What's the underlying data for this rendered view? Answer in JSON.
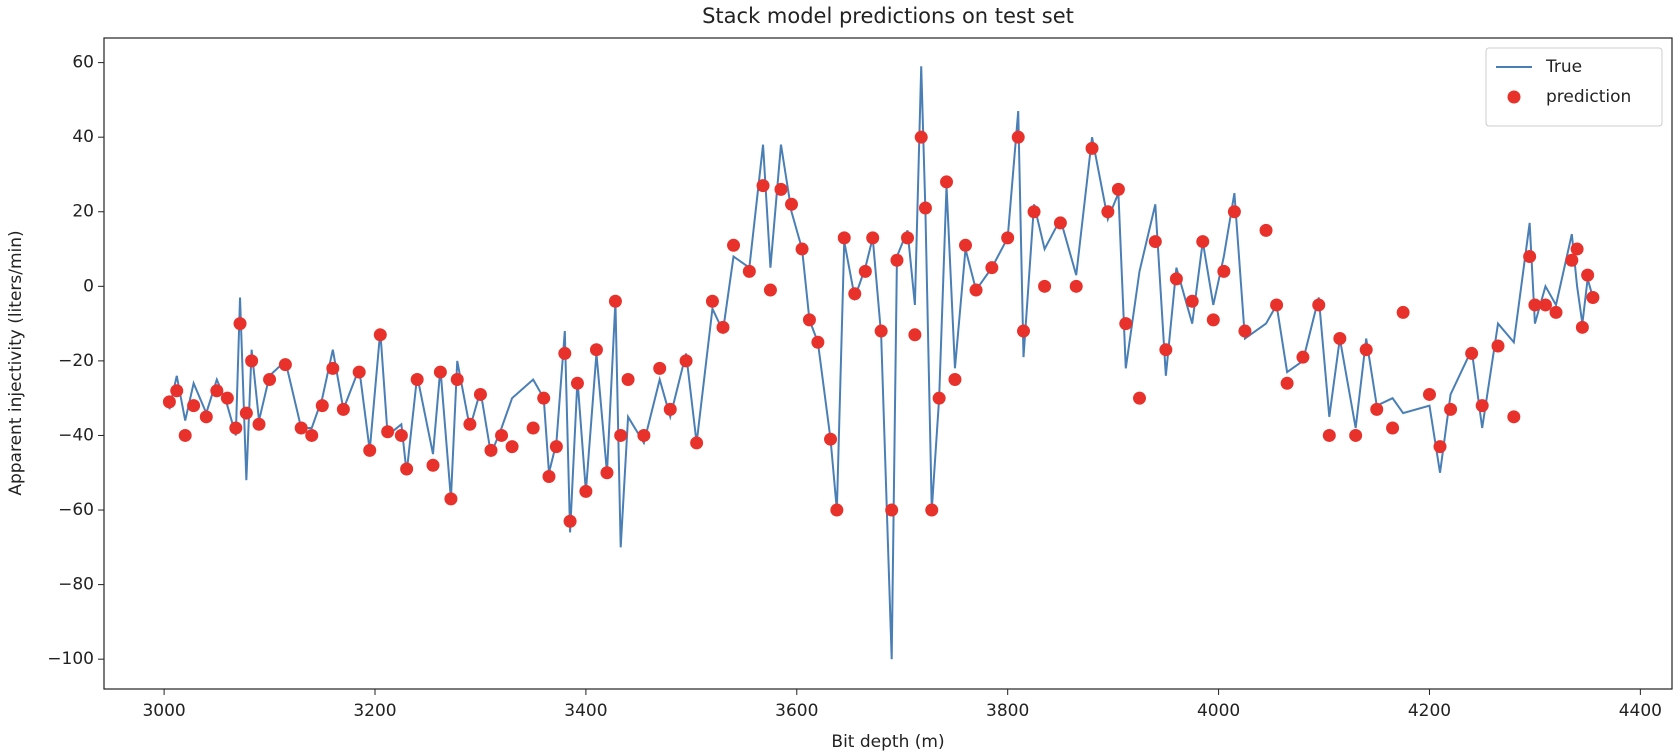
{
  "chart_data": {
    "type": "combo",
    "title": "Stack model predictions on test set",
    "xlabel": "Bit depth (m)",
    "ylabel": "Apparent injectivity (liters/min)",
    "x": [
      3005,
      3012,
      3020,
      3028,
      3040,
      3050,
      3060,
      3068,
      3072,
      3078,
      3083,
      3090,
      3100,
      3115,
      3130,
      3140,
      3150,
      3160,
      3170,
      3185,
      3195,
      3205,
      3212,
      3225,
      3230,
      3240,
      3255,
      3262,
      3272,
      3278,
      3290,
      3300,
      3310,
      3320,
      3330,
      3350,
      3360,
      3365,
      3372,
      3380,
      3385,
      3392,
      3400,
      3410,
      3420,
      3428,
      3433,
      3440,
      3455,
      3470,
      3480,
      3495,
      3505,
      3520,
      3530,
      3540,
      3555,
      3568,
      3575,
      3585,
      3595,
      3605,
      3612,
      3620,
      3632,
      3638,
      3645,
      3655,
      3665,
      3672,
      3680,
      3690,
      3695,
      3705,
      3712,
      3718,
      3722,
      3728,
      3735,
      3742,
      3750,
      3760,
      3770,
      3785,
      3800,
      3810,
      3815,
      3825,
      3835,
      3850,
      3865,
      3880,
      3895,
      3905,
      3912,
      3925,
      3940,
      3950,
      3960,
      3975,
      3985,
      3995,
      4005,
      4015,
      4025,
      4045,
      4055,
      4065,
      4080,
      4095,
      4105,
      4115,
      4130,
      4140,
      4150,
      4165,
      4175,
      4200,
      4210,
      4220,
      4240,
      4250,
      4265,
      4280,
      4295,
      4300,
      4310,
      4320,
      4335,
      4340,
      4345,
      4350,
      4355
    ],
    "series": [
      {
        "name": "True",
        "type": "line",
        "color": "#4a7fb5",
        "values": [
          -33,
          -24,
          -36,
          -26,
          -34,
          -25,
          -32,
          -40,
          -3,
          -52,
          -17,
          -36,
          -24,
          -20,
          -38,
          -38,
          -30,
          -17,
          -33,
          -22,
          -44,
          -12,
          -40,
          -37,
          -50,
          -24,
          -45,
          -22,
          -57,
          -20,
          -38,
          -28,
          -45,
          -38,
          -30,
          -25,
          -30,
          -50,
          -42,
          -12,
          -66,
          -25,
          -55,
          -18,
          -50,
          -4,
          -70,
          -35,
          -42,
          -25,
          -35,
          -18,
          -42,
          -6,
          -12,
          8,
          5,
          38,
          5,
          38,
          20,
          10,
          -9,
          -15,
          -41,
          -60,
          12,
          -3,
          5,
          13,
          -13,
          -100,
          8,
          15,
          -5,
          59,
          20,
          -60,
          -30,
          27,
          -22,
          10,
          -1,
          5,
          13,
          47,
          -19,
          22,
          10,
          18,
          3,
          40,
          18,
          25,
          -22,
          4,
          22,
          -24,
          5,
          -10,
          12,
          -5,
          8,
          25,
          -14,
          -10,
          -5,
          -23,
          -20,
          -3,
          -35,
          -14,
          -38,
          -14,
          -32,
          -30,
          -34,
          -32,
          -50,
          -29,
          -17,
          -38,
          -10,
          -15,
          17,
          -10,
          0,
          -5,
          14,
          0,
          -10,
          2,
          -3
        ]
      },
      {
        "name": "prediction",
        "type": "scatter",
        "color": "#e8312b",
        "values": [
          -31,
          -28,
          -40,
          -32,
          -35,
          -28,
          -30,
          -38,
          -10,
          -34,
          -20,
          -37,
          -25,
          -21,
          -38,
          -40,
          -32,
          -22,
          -33,
          -23,
          -44,
          -13,
          -39,
          -40,
          -49,
          -25,
          -48,
          -23,
          -57,
          -25,
          -37,
          -29,
          -44,
          -40,
          -43,
          -38,
          -30,
          -51,
          -43,
          -18,
          -63,
          -26,
          -55,
          -17,
          -50,
          -4,
          -40,
          -25,
          -40,
          -22,
          -33,
          -20,
          -42,
          -4,
          -11,
          11,
          4,
          27,
          -1,
          26,
          22,
          10,
          -9,
          -15,
          -41,
          -60,
          13,
          -2,
          4,
          13,
          -12,
          -60,
          7,
          13,
          -13,
          40,
          21,
          -60,
          -30,
          28,
          -25,
          11,
          -1,
          5,
          13,
          40,
          -12,
          20,
          0,
          17,
          0,
          37,
          20,
          26,
          -10,
          -30,
          12,
          -17,
          2,
          -4,
          12,
          -9,
          4,
          20,
          -12,
          15,
          -5,
          -26,
          -19,
          -5,
          -40,
          -14,
          -40,
          -17,
          -33,
          -38,
          -7,
          -29,
          -43,
          -33,
          -18,
          -32,
          -16,
          -35,
          8,
          -5,
          -5,
          -7,
          7,
          10,
          -11,
          3,
          -3
        ]
      }
    ],
    "xlim": [
      2943,
      4430
    ],
    "ylim": [
      -108,
      66.6
    ],
    "xticks": [
      3000,
      3200,
      3400,
      3600,
      3800,
      4000,
      4200,
      4400
    ],
    "yticks": [
      {
        "value": -100,
        "label": "−100"
      },
      {
        "value": -80,
        "label": "−80"
      },
      {
        "value": -60,
        "label": "−60"
      },
      {
        "value": -40,
        "label": "−40"
      },
      {
        "value": -20,
        "label": "−20"
      },
      0,
      20,
      40,
      60
    ],
    "legend": "upper right"
  }
}
